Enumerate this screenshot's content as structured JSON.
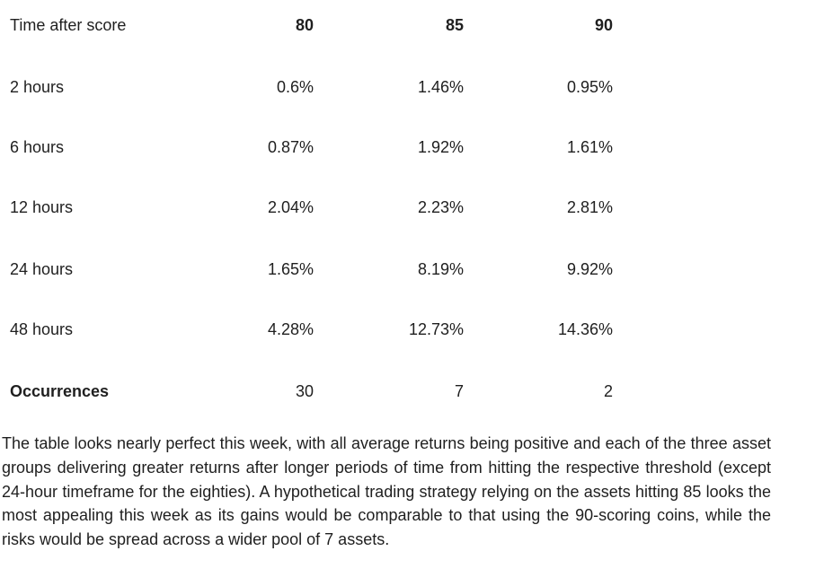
{
  "table": {
    "header": {
      "label": "Time after score",
      "cols": [
        "80",
        "85",
        "90"
      ]
    },
    "rows": [
      {
        "label": "2 hours",
        "values": [
          "0.6%",
          "1.46%",
          "0.95%"
        ]
      },
      {
        "label": "6 hours",
        "values": [
          "0.87%",
          "1.92%",
          "1.61%"
        ]
      },
      {
        "label": "12 hours",
        "values": [
          "2.04%",
          "2.23%",
          "2.81%"
        ]
      },
      {
        "label": "24 hours",
        "values": [
          "1.65%",
          "8.19%",
          "9.92%"
        ]
      },
      {
        "label": "48 hours",
        "values": [
          "4.28%",
          "12.73%",
          "14.36%"
        ]
      }
    ],
    "footer": {
      "label": "Occurrences",
      "values": [
        "30",
        "7",
        "2"
      ]
    }
  },
  "paragraph": "The table looks nearly perfect this week, with all average returns being positive and each of the three asset groups delivering greater returns after longer periods of time from hitting the respective threshold (except 24-hour timeframe for the eighties). A hypothetical trading strategy relying on the assets hitting 85 looks the most appealing this week as its gains would be comparable to that using the 90-scoring coins, while the risks would be spread across a wider pool of 7 assets."
}
